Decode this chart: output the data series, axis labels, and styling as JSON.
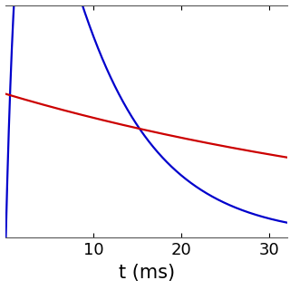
{
  "title": "",
  "xlabel": "t (ms)",
  "ylabel": "",
  "xlim": [
    0,
    32
  ],
  "ylim": [
    0,
    1.0
  ],
  "xticks": [
    10,
    20,
    30
  ],
  "yticks": [],
  "blue_tau_rise": 1.5,
  "blue_tau_decay": 8.5,
  "blue_amplitude": 1.6,
  "red_amplitude": 0.62,
  "red_tau_decay": 55.0,
  "blue_color": "#0000cc",
  "red_color": "#cc0000",
  "linewidth": 1.6,
  "figsize": [
    3.2,
    3.2
  ],
  "dpi": 100,
  "background_color": "#ffffff",
  "xlabel_fontsize": 15,
  "tick_labelsize": 13
}
